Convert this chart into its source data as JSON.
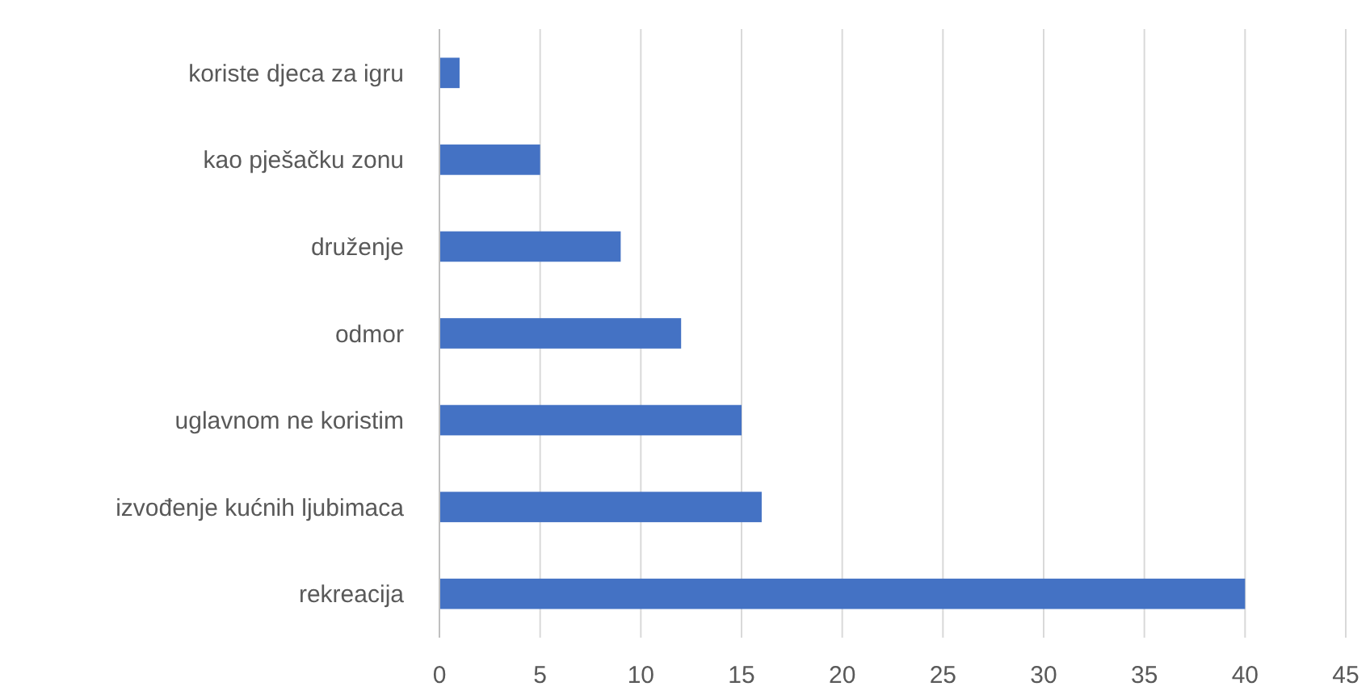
{
  "chart_data": {
    "type": "bar",
    "orientation": "horizontal",
    "categories": [
      "koriste djeca za igru",
      "kao pješačku zonu",
      "druženje",
      "odmor",
      "uglavnom ne koristim",
      "izvođenje kućnih ljubimaca",
      "rekreacija"
    ],
    "values": [
      1,
      5,
      9,
      12,
      15,
      16,
      40
    ],
    "color": "#4472c4",
    "xlim": [
      0,
      45
    ],
    "xticks": [
      0,
      5,
      10,
      15,
      20,
      25,
      30,
      35,
      40,
      45
    ],
    "grid": "x"
  }
}
